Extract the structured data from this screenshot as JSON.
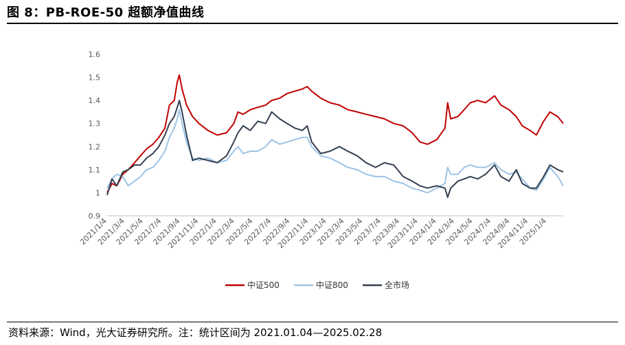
{
  "figure": {
    "title": "图 8：PB-ROE-50 超额净值曲线",
    "source": "资料来源：Wind，光大证券研究所。注：统计区间为 2021.01.04—2025.02.28"
  },
  "chart_data": {
    "type": "line",
    "title": "",
    "xlabel": "",
    "ylabel": "",
    "ylim": [
      0.9,
      1.6
    ],
    "yticks": [
      "0.9",
      "1",
      "1.1",
      "1.2",
      "1.3",
      "1.4",
      "1.5",
      "1.6"
    ],
    "xlim": [
      "2021-01-04",
      "2025-02-28"
    ],
    "x_ticks": [
      "2021/1/4",
      "2021/3/4",
      "2021/5/4",
      "2021/7/4",
      "2021/9/4",
      "2021/11/4",
      "2022/1/4",
      "2022/3/4",
      "2022/5/4",
      "2022/7/4",
      "2022/9/4",
      "2022/11/4",
      "2023/1/4",
      "2023/3/4",
      "2023/5/4",
      "2023/7/4",
      "2023/9/4",
      "2023/11/4",
      "2024/1/4",
      "2024/3/4",
      "2024/5/4",
      "2024/7/4",
      "2024/9/4",
      "2024/11/4",
      "2025/1/4"
    ],
    "grid": false,
    "legend_position": "bottom",
    "series": [
      {
        "name": "中证500",
        "color": "#c00000",
        "points": [
          [
            "2021-01-04",
            1.0
          ],
          [
            "2021-01-20",
            1.04
          ],
          [
            "2021-02-05",
            1.03
          ],
          [
            "2021-02-25",
            1.08
          ],
          [
            "2021-03-15",
            1.1
          ],
          [
            "2021-04-05",
            1.13
          ],
          [
            "2021-04-25",
            1.16
          ],
          [
            "2021-05-15",
            1.19
          ],
          [
            "2021-06-05",
            1.21
          ],
          [
            "2021-06-25",
            1.24
          ],
          [
            "2021-07-15",
            1.28
          ],
          [
            "2021-07-30",
            1.38
          ],
          [
            "2021-08-15",
            1.4
          ],
          [
            "2021-08-25",
            1.48
          ],
          [
            "2021-09-01",
            1.51
          ],
          [
            "2021-09-10",
            1.45
          ],
          [
            "2021-09-25",
            1.38
          ],
          [
            "2021-10-15",
            1.33
          ],
          [
            "2021-11-05",
            1.3
          ],
          [
            "2021-12-05",
            1.27
          ],
          [
            "2022-01-05",
            1.25
          ],
          [
            "2022-02-05",
            1.26
          ],
          [
            "2022-03-01",
            1.3
          ],
          [
            "2022-03-15",
            1.35
          ],
          [
            "2022-04-01",
            1.34
          ],
          [
            "2022-04-25",
            1.36
          ],
          [
            "2022-05-20",
            1.37
          ],
          [
            "2022-06-15",
            1.38
          ],
          [
            "2022-07-05",
            1.4
          ],
          [
            "2022-08-01",
            1.41
          ],
          [
            "2022-08-25",
            1.43
          ],
          [
            "2022-09-20",
            1.44
          ],
          [
            "2022-10-15",
            1.45
          ],
          [
            "2022-10-31",
            1.46
          ],
          [
            "2022-11-15",
            1.44
          ],
          [
            "2022-12-15",
            1.41
          ],
          [
            "2023-01-15",
            1.39
          ],
          [
            "2023-02-15",
            1.38
          ],
          [
            "2023-03-15",
            1.36
          ],
          [
            "2023-04-15",
            1.35
          ],
          [
            "2023-05-15",
            1.34
          ],
          [
            "2023-06-15",
            1.33
          ],
          [
            "2023-07-15",
            1.32
          ],
          [
            "2023-08-15",
            1.3
          ],
          [
            "2023-09-15",
            1.29
          ],
          [
            "2023-10-15",
            1.26
          ],
          [
            "2023-11-10",
            1.22
          ],
          [
            "2023-12-05",
            1.21
          ],
          [
            "2024-01-05",
            1.23
          ],
          [
            "2024-02-01",
            1.28
          ],
          [
            "2024-02-10",
            1.39
          ],
          [
            "2024-02-20",
            1.32
          ],
          [
            "2024-03-15",
            1.33
          ],
          [
            "2024-04-05",
            1.36
          ],
          [
            "2024-04-25",
            1.39
          ],
          [
            "2024-05-20",
            1.4
          ],
          [
            "2024-06-15",
            1.39
          ],
          [
            "2024-07-15",
            1.42
          ],
          [
            "2024-08-05",
            1.38
          ],
          [
            "2024-09-01",
            1.36
          ],
          [
            "2024-09-25",
            1.33
          ],
          [
            "2024-10-15",
            1.29
          ],
          [
            "2024-11-10",
            1.27
          ],
          [
            "2024-12-01",
            1.25
          ],
          [
            "2024-12-25",
            1.31
          ],
          [
            "2025-01-15",
            1.35
          ],
          [
            "2025-02-10",
            1.33
          ],
          [
            "2025-02-28",
            1.3
          ]
        ]
      },
      {
        "name": "中证800",
        "color": "#9dc3e6",
        "points": [
          [
            "2021-01-04",
            1.02
          ],
          [
            "2021-01-20",
            1.06
          ],
          [
            "2021-02-05",
            1.08
          ],
          [
            "2021-02-25",
            1.07
          ],
          [
            "2021-03-15",
            1.03
          ],
          [
            "2021-04-05",
            1.05
          ],
          [
            "2021-04-25",
            1.07
          ],
          [
            "2021-05-15",
            1.1
          ],
          [
            "2021-06-05",
            1.11
          ],
          [
            "2021-06-25",
            1.14
          ],
          [
            "2021-07-15",
            1.18
          ],
          [
            "2021-07-30",
            1.24
          ],
          [
            "2021-08-15",
            1.28
          ],
          [
            "2021-08-25",
            1.32
          ],
          [
            "2021-09-01",
            1.36
          ],
          [
            "2021-09-10",
            1.3
          ],
          [
            "2021-09-25",
            1.22
          ],
          [
            "2021-10-15",
            1.15
          ],
          [
            "2021-11-05",
            1.14
          ],
          [
            "2021-12-05",
            1.15
          ],
          [
            "2022-01-05",
            1.13
          ],
          [
            "2022-02-05",
            1.14
          ],
          [
            "2022-03-01",
            1.18
          ],
          [
            "2022-03-15",
            1.2
          ],
          [
            "2022-04-01",
            1.17
          ],
          [
            "2022-04-25",
            1.18
          ],
          [
            "2022-05-20",
            1.18
          ],
          [
            "2022-06-15",
            1.2
          ],
          [
            "2022-07-05",
            1.23
          ],
          [
            "2022-08-01",
            1.21
          ],
          [
            "2022-08-25",
            1.22
          ],
          [
            "2022-09-20",
            1.23
          ],
          [
            "2022-10-15",
            1.24
          ],
          [
            "2022-10-31",
            1.24
          ],
          [
            "2022-11-15",
            1.2
          ],
          [
            "2022-12-15",
            1.16
          ],
          [
            "2023-01-15",
            1.15
          ],
          [
            "2023-02-15",
            1.13
          ],
          [
            "2023-03-15",
            1.11
          ],
          [
            "2023-04-15",
            1.1
          ],
          [
            "2023-05-15",
            1.08
          ],
          [
            "2023-06-15",
            1.07
          ],
          [
            "2023-07-15",
            1.07
          ],
          [
            "2023-08-15",
            1.05
          ],
          [
            "2023-09-15",
            1.04
          ],
          [
            "2023-10-15",
            1.02
          ],
          [
            "2023-11-10",
            1.01
          ],
          [
            "2023-12-05",
            1.0
          ],
          [
            "2024-01-05",
            1.02
          ],
          [
            "2024-02-01",
            1.04
          ],
          [
            "2024-02-10",
            1.11
          ],
          [
            "2024-02-20",
            1.08
          ],
          [
            "2024-03-15",
            1.08
          ],
          [
            "2024-04-05",
            1.11
          ],
          [
            "2024-04-25",
            1.12
          ],
          [
            "2024-05-20",
            1.11
          ],
          [
            "2024-06-15",
            1.11
          ],
          [
            "2024-07-15",
            1.13
          ],
          [
            "2024-08-05",
            1.1
          ],
          [
            "2024-09-01",
            1.08
          ],
          [
            "2024-09-25",
            1.09
          ],
          [
            "2024-10-15",
            1.06
          ],
          [
            "2024-11-10",
            1.02
          ],
          [
            "2024-12-01",
            1.01
          ],
          [
            "2024-12-25",
            1.06
          ],
          [
            "2025-01-15",
            1.11
          ],
          [
            "2025-02-10",
            1.07
          ],
          [
            "2025-02-28",
            1.03
          ]
        ]
      },
      {
        "name": "全市场",
        "color": "#333f50",
        "points": [
          [
            "2021-01-04",
            0.99
          ],
          [
            "2021-01-20",
            1.06
          ],
          [
            "2021-02-05",
            1.03
          ],
          [
            "2021-02-25",
            1.09
          ],
          [
            "2021-03-15",
            1.1
          ],
          [
            "2021-04-05",
            1.12
          ],
          [
            "2021-04-25",
            1.12
          ],
          [
            "2021-05-15",
            1.15
          ],
          [
            "2021-06-05",
            1.17
          ],
          [
            "2021-06-25",
            1.2
          ],
          [
            "2021-07-15",
            1.25
          ],
          [
            "2021-07-30",
            1.3
          ],
          [
            "2021-08-15",
            1.33
          ],
          [
            "2021-08-25",
            1.37
          ],
          [
            "2021-09-01",
            1.4
          ],
          [
            "2021-09-10",
            1.35
          ],
          [
            "2021-09-25",
            1.25
          ],
          [
            "2021-10-15",
            1.14
          ],
          [
            "2021-11-05",
            1.15
          ],
          [
            "2021-12-05",
            1.14
          ],
          [
            "2022-01-05",
            1.13
          ],
          [
            "2022-02-05",
            1.16
          ],
          [
            "2022-03-01",
            1.22
          ],
          [
            "2022-03-15",
            1.26
          ],
          [
            "2022-04-01",
            1.29
          ],
          [
            "2022-04-25",
            1.27
          ],
          [
            "2022-05-20",
            1.31
          ],
          [
            "2022-06-15",
            1.3
          ],
          [
            "2022-07-05",
            1.35
          ],
          [
            "2022-08-01",
            1.32
          ],
          [
            "2022-08-25",
            1.3
          ],
          [
            "2022-09-20",
            1.28
          ],
          [
            "2022-10-15",
            1.27
          ],
          [
            "2022-10-31",
            1.29
          ],
          [
            "2022-11-15",
            1.22
          ],
          [
            "2022-12-15",
            1.17
          ],
          [
            "2023-01-15",
            1.18
          ],
          [
            "2023-02-15",
            1.2
          ],
          [
            "2023-03-15",
            1.18
          ],
          [
            "2023-04-15",
            1.16
          ],
          [
            "2023-05-15",
            1.13
          ],
          [
            "2023-06-15",
            1.11
          ],
          [
            "2023-07-15",
            1.13
          ],
          [
            "2023-08-15",
            1.12
          ],
          [
            "2023-09-15",
            1.07
          ],
          [
            "2023-10-15",
            1.05
          ],
          [
            "2023-11-10",
            1.03
          ],
          [
            "2023-12-05",
            1.02
          ],
          [
            "2024-01-05",
            1.03
          ],
          [
            "2024-02-01",
            1.02
          ],
          [
            "2024-02-10",
            0.98
          ],
          [
            "2024-02-20",
            1.02
          ],
          [
            "2024-03-15",
            1.05
          ],
          [
            "2024-04-05",
            1.06
          ],
          [
            "2024-04-25",
            1.07
          ],
          [
            "2024-05-20",
            1.06
          ],
          [
            "2024-06-15",
            1.08
          ],
          [
            "2024-07-15",
            1.12
          ],
          [
            "2024-08-05",
            1.07
          ],
          [
            "2024-09-01",
            1.05
          ],
          [
            "2024-09-25",
            1.1
          ],
          [
            "2024-10-15",
            1.04
          ],
          [
            "2024-11-10",
            1.02
          ],
          [
            "2024-12-01",
            1.02
          ],
          [
            "2024-12-25",
            1.07
          ],
          [
            "2025-01-15",
            1.12
          ],
          [
            "2025-02-10",
            1.1
          ],
          [
            "2025-02-28",
            1.09
          ]
        ]
      }
    ]
  }
}
